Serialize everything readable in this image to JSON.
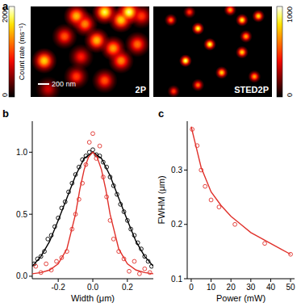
{
  "chart_data": [
    {
      "type": "image",
      "panel": "a",
      "xlim": [
        0,
        2.1
      ],
      "ylim": [
        0,
        1.6
      ],
      "tick_labels": false,
      "colorbar_label": "Count rate (ms⁻¹)",
      "scale_bar": {
        "value": 0.2,
        "label": "200 nm"
      },
      "images": [
        {
          "label": "2P",
          "colorbar": {
            "range": [
              0,
              2000
            ],
            "ticks": [
              0,
              2000
            ]
          },
          "spots": {
            "x": [
              0.81,
              0.96,
              1.31,
              1.6,
              1.74,
              1.96,
              0.6,
              1.17,
              1.46,
              1.6,
              1.89,
              0.24,
              0.89,
              0.81,
              1.31,
              0.31
            ],
            "y": [
              0.17,
              0.31,
              0.1,
              0.24,
              0.1,
              0.17,
              0.53,
              0.6,
              0.74,
              0.96,
              0.67,
              0.96,
              0.89,
              1.24,
              1.31,
              1.46
            ],
            "peak": [
              1500,
              1300,
              1800,
              1600,
              1900,
              1000,
              1100,
              1500,
              1400,
              1300,
              1200,
              1600,
              900,
              1000,
              1100,
              700
            ]
          }
        },
        {
          "label": "STED2P",
          "colorbar": {
            "range": [
              0,
              1000
            ],
            "ticks": [
              0,
              1000
            ]
          },
          "spots": {
            "x": [
              0.31,
              0.64,
              0.79,
              1.36,
              1.57,
              1.86,
              1.64,
              1.0,
              1.57,
              0.57,
              1.21,
              1.79,
              0.79,
              0.36
            ],
            "y": [
              0.24,
              0.1,
              0.39,
              0.06,
              0.24,
              0.17,
              0.53,
              0.67,
              0.81,
              0.96,
              1.17,
              1.24,
              1.39,
              1.5
            ],
            "peak": [
              600,
              500,
              900,
              700,
              850,
              800,
              700,
              900,
              800,
              950,
              800,
              700,
              600,
              500
            ]
          }
        }
      ]
    },
    {
      "type": "scatter",
      "panel": "b",
      "x_label": "Width (μm)",
      "xlim": [
        -0.35,
        0.35
      ],
      "ylim": [
        -0.02,
        1.25
      ],
      "xticks": [
        -0.2,
        {
          "value": 0,
          "label": "0.0"
        },
        0.2
      ],
      "yticks": [
        {
          "value": 0,
          "label": "0.0"
        },
        0.5,
        {
          "value": 1,
          "label": "1.0"
        }
      ],
      "series": [
        {
          "type": "scatter",
          "marker": "circle-open",
          "color": "#000000",
          "x": [
            -0.34,
            -0.32,
            -0.3,
            -0.28,
            -0.26,
            -0.24,
            -0.22,
            -0.2,
            -0.18,
            -0.16,
            -0.14,
            -0.12,
            -0.1,
            -0.08,
            -0.06,
            -0.04,
            -0.02,
            0,
            0.02,
            0.04,
            0.06,
            0.08,
            0.1,
            0.12,
            0.14,
            0.16,
            0.18,
            0.2,
            0.22,
            0.24,
            0.26,
            0.28,
            0.3,
            0.32,
            0.34
          ],
          "values": [
            0.1,
            0.14,
            0.16,
            0.2,
            0.3,
            0.33,
            0.4,
            0.47,
            0.55,
            0.6,
            0.68,
            0.75,
            0.82,
            0.88,
            0.94,
            0.97,
            1.0,
            1.02,
            0.98,
            0.97,
            0.92,
            0.88,
            0.8,
            0.73,
            0.66,
            0.58,
            0.52,
            0.45,
            0.38,
            0.33,
            0.27,
            0.22,
            0.16,
            0.12,
            0.08
          ]
        },
        {
          "type": "line",
          "color": "#000000",
          "x": [
            -0.35,
            -0.3,
            -0.25,
            -0.2,
            -0.15,
            -0.1,
            -0.05,
            0,
            0.05,
            0.1,
            0.15,
            0.2,
            0.25,
            0.3,
            0.35
          ],
          "values": [
            0.08,
            0.16,
            0.28,
            0.45,
            0.63,
            0.81,
            0.95,
            1.0,
            0.95,
            0.81,
            0.63,
            0.45,
            0.28,
            0.16,
            0.08
          ]
        },
        {
          "type": "scatter",
          "marker": "circle-open",
          "color": "#e0302a",
          "x": [
            -0.33,
            -0.3,
            -0.27,
            -0.24,
            -0.21,
            -0.18,
            -0.15,
            -0.12,
            -0.1,
            -0.08,
            -0.06,
            -0.04,
            -0.02,
            0,
            0.02,
            0.04,
            0.06,
            0.08,
            0.1,
            0.12,
            0.15,
            0.18,
            0.21,
            0.24,
            0.27,
            0.3,
            0.33
          ],
          "values": [
            0.08,
            0.03,
            0.1,
            0.05,
            0.12,
            0.15,
            0.2,
            0.38,
            0.5,
            0.62,
            0.75,
            0.9,
            1.08,
            1.15,
            0.95,
            1.05,
            0.8,
            0.64,
            0.45,
            0.3,
            0.2,
            0.14,
            0.04,
            0.12,
            0.02,
            0.06,
            0.03
          ]
        },
        {
          "type": "line",
          "color": "#e0302a",
          "x": [
            -0.35,
            -0.3,
            -0.25,
            -0.2,
            -0.15,
            -0.1,
            -0.075,
            -0.05,
            -0.025,
            0,
            0.025,
            0.05,
            0.075,
            0.1,
            0.15,
            0.2,
            0.25,
            0.3,
            0.35
          ],
          "values": [
            0.02,
            0.03,
            0.05,
            0.1,
            0.22,
            0.5,
            0.7,
            0.86,
            0.96,
            1.0,
            0.96,
            0.86,
            0.7,
            0.5,
            0.22,
            0.1,
            0.05,
            0.03,
            0.02
          ]
        }
      ]
    },
    {
      "type": "scatter",
      "panel": "c",
      "x_label": "Power (mW)",
      "y_label": "FWHM (μm)",
      "xlim": [
        -2,
        52
      ],
      "ylim": [
        0.1,
        0.39
      ],
      "xticks": [
        0,
        10,
        20,
        30,
        40,
        50
      ],
      "yticks": [
        0.1,
        0.2,
        0.3
      ],
      "series": [
        {
          "type": "scatter",
          "marker": "circle-open",
          "color": "#e0302a",
          "x": [
            0.5,
            3,
            5,
            7,
            10,
            14,
            22,
            37,
            50
          ],
          "values": [
            0.375,
            0.345,
            0.3,
            0.27,
            0.245,
            0.232,
            0.2,
            0.165,
            0.145
          ]
        },
        {
          "type": "line",
          "color": "#e0302a",
          "x": [
            0,
            2,
            5,
            10,
            15,
            20,
            25,
            30,
            35,
            40,
            45,
            50
          ],
          "values": [
            0.38,
            0.35,
            0.305,
            0.26,
            0.235,
            0.215,
            0.2,
            0.185,
            0.175,
            0.165,
            0.155,
            0.145
          ]
        }
      ]
    }
  ]
}
